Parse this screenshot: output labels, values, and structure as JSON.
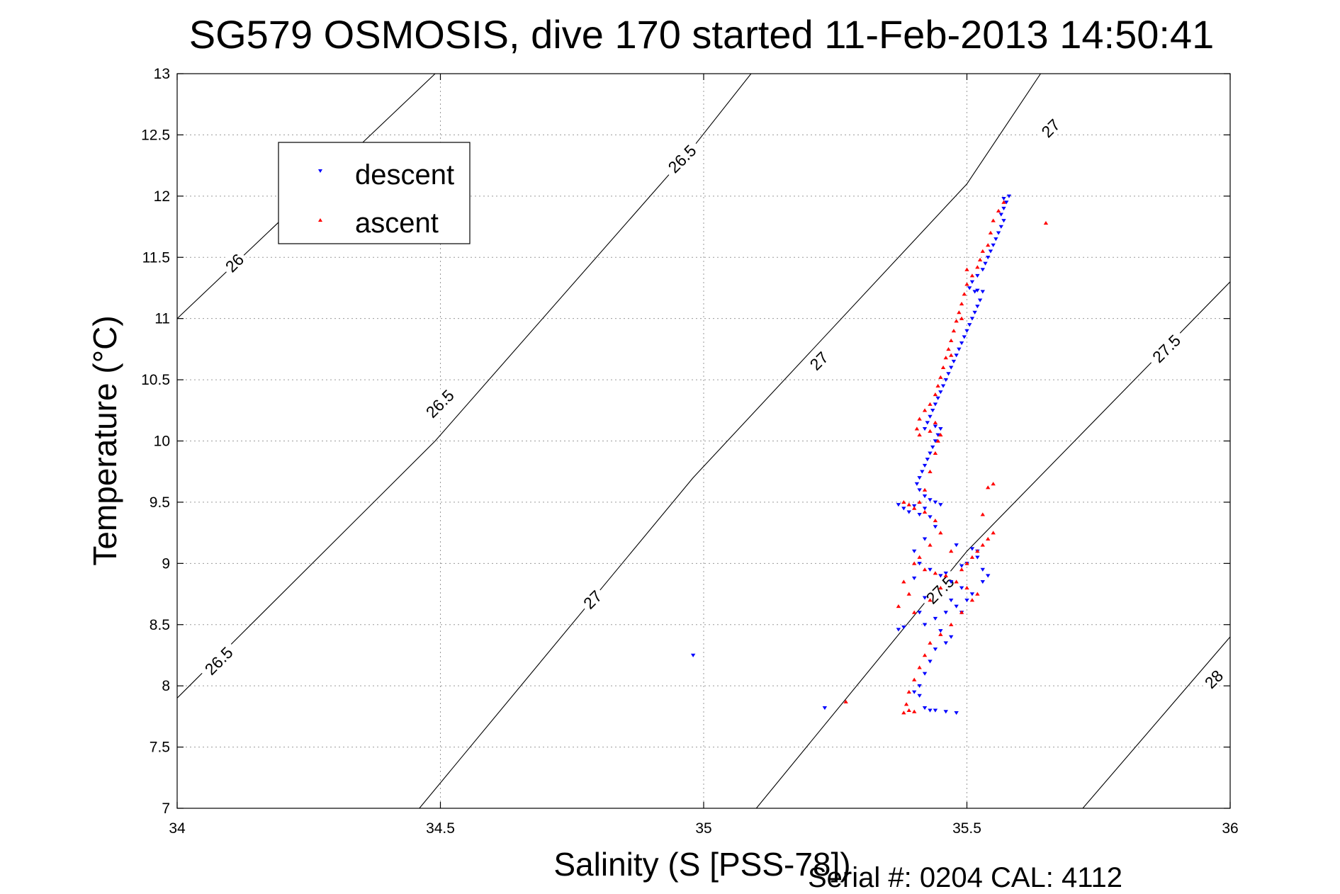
{
  "chart_data": {
    "type": "scatter",
    "title": "SG579 OSMOSIS, dive 170 started 11-Feb-2013 14:50:41",
    "xlabel": "Salinity (S [PSS-78])",
    "ylabel": "Temperature (°C)",
    "footer": "Serial #: 0204  CAL: 4112",
    "xlim": [
      34,
      36
    ],
    "ylim": [
      7,
      13
    ],
    "xticks": [
      "34",
      "34.5",
      "35",
      "35.5",
      "36"
    ],
    "yticks": [
      "7",
      "7.5",
      "8",
      "8.5",
      "9",
      "9.5",
      "10",
      "10.5",
      "11",
      "11.5",
      "12",
      "12.5",
      "13"
    ],
    "grid": true,
    "legend_position": "top-left",
    "colors": {
      "descent": "#0000ff",
      "ascent": "#ff0000"
    },
    "isopycnals": [
      {
        "sigma": "26",
        "points": [
          [
            34.0,
            11.0
          ],
          [
            34.49,
            13.0
          ]
        ]
      },
      {
        "sigma": "26.5",
        "points": [
          [
            34.0,
            7.9
          ],
          [
            34.49,
            10.0
          ],
          [
            34.98,
            12.4
          ],
          [
            35.09,
            13.0
          ]
        ]
      },
      {
        "sigma": "27",
        "points": [
          [
            34.46,
            7.0
          ],
          [
            34.98,
            9.7
          ],
          [
            35.5,
            12.1
          ],
          [
            35.64,
            13.0
          ]
        ]
      },
      {
        "sigma": "27.5",
        "points": [
          [
            35.1,
            7.0
          ],
          [
            35.5,
            9.1
          ],
          [
            36.0,
            11.3
          ]
        ]
      },
      {
        "sigma": "28",
        "points": [
          [
            35.72,
            7.0
          ],
          [
            36.0,
            8.4
          ]
        ]
      }
    ],
    "contour_labels": [
      {
        "text": "26",
        "x": 34.11,
        "y": 11.45,
        "angle": -45
      },
      {
        "text": "26.5",
        "x": 34.08,
        "y": 8.2,
        "angle": -45
      },
      {
        "text": "26.5",
        "x": 34.5,
        "y": 10.3,
        "angle": -45
      },
      {
        "text": "26.5",
        "x": 34.96,
        "y": 12.3,
        "angle": -45
      },
      {
        "text": "27",
        "x": 34.79,
        "y": 8.7,
        "angle": -45
      },
      {
        "text": "27",
        "x": 35.22,
        "y": 10.65,
        "angle": -45
      },
      {
        "text": "27",
        "x": 35.66,
        "y": 12.55,
        "angle": -45
      },
      {
        "text": "27.5",
        "x": 35.45,
        "y": 8.78,
        "angle": -45
      },
      {
        "text": "27.5",
        "x": 35.88,
        "y": 10.75,
        "angle": -45
      },
      {
        "text": "28",
        "x": 35.97,
        "y": 8.05,
        "angle": -45
      }
    ],
    "series": [
      {
        "name": "descent",
        "marker": "triangle-down",
        "points": [
          [
            35.58,
            12.0
          ],
          [
            35.57,
            11.98
          ],
          [
            35.575,
            11.95
          ],
          [
            35.57,
            11.9
          ],
          [
            35.565,
            11.85
          ],
          [
            35.57,
            11.8
          ],
          [
            35.565,
            11.75
          ],
          [
            35.56,
            11.7
          ],
          [
            35.555,
            11.65
          ],
          [
            35.55,
            11.6
          ],
          [
            35.545,
            11.55
          ],
          [
            35.54,
            11.5
          ],
          [
            35.535,
            11.45
          ],
          [
            35.53,
            11.4
          ],
          [
            35.52,
            11.35
          ],
          [
            35.51,
            11.3
          ],
          [
            35.505,
            11.25
          ],
          [
            35.515,
            11.22
          ],
          [
            35.52,
            11.23
          ],
          [
            35.53,
            11.22
          ],
          [
            35.525,
            11.15
          ],
          [
            35.52,
            11.1
          ],
          [
            35.515,
            11.05
          ],
          [
            35.51,
            11.0
          ],
          [
            35.505,
            10.95
          ],
          [
            35.5,
            10.9
          ],
          [
            35.495,
            10.85
          ],
          [
            35.49,
            10.8
          ],
          [
            35.485,
            10.75
          ],
          [
            35.48,
            10.7
          ],
          [
            35.475,
            10.65
          ],
          [
            35.47,
            10.6
          ],
          [
            35.465,
            10.55
          ],
          [
            35.46,
            10.5
          ],
          [
            35.455,
            10.45
          ],
          [
            35.45,
            10.4
          ],
          [
            35.445,
            10.35
          ],
          [
            35.44,
            10.3
          ],
          [
            35.435,
            10.25
          ],
          [
            35.43,
            10.2
          ],
          [
            35.425,
            10.15
          ],
          [
            35.42,
            10.1
          ],
          [
            35.44,
            10.12
          ],
          [
            35.45,
            10.1
          ],
          [
            35.445,
            10.05
          ],
          [
            35.44,
            10.0
          ],
          [
            35.435,
            9.95
          ],
          [
            35.43,
            9.9
          ],
          [
            35.425,
            9.85
          ],
          [
            35.42,
            9.8
          ],
          [
            35.415,
            9.75
          ],
          [
            35.41,
            9.7
          ],
          [
            35.405,
            9.65
          ],
          [
            35.41,
            9.6
          ],
          [
            35.42,
            9.55
          ],
          [
            35.43,
            9.52
          ],
          [
            35.44,
            9.5
          ],
          [
            35.45,
            9.48
          ],
          [
            35.42,
            9.45
          ],
          [
            35.4,
            9.47
          ],
          [
            35.38,
            9.45
          ],
          [
            35.37,
            9.48
          ],
          [
            35.39,
            9.42
          ],
          [
            35.41,
            9.4
          ],
          [
            35.43,
            9.38
          ],
          [
            35.44,
            9.3
          ],
          [
            35.42,
            9.2
          ],
          [
            35.4,
            9.1
          ],
          [
            35.41,
            9.0
          ],
          [
            35.43,
            8.95
          ],
          [
            35.45,
            8.9
          ],
          [
            35.47,
            8.85
          ],
          [
            35.49,
            8.8
          ],
          [
            35.51,
            8.75
          ],
          [
            35.5,
            8.7
          ],
          [
            35.48,
            8.65
          ],
          [
            35.46,
            8.6
          ],
          [
            35.44,
            8.55
          ],
          [
            35.42,
            8.5
          ],
          [
            35.38,
            8.48
          ],
          [
            35.37,
            8.46
          ],
          [
            35.45,
            8.45
          ],
          [
            35.47,
            8.4
          ],
          [
            35.46,
            8.35
          ],
          [
            35.44,
            8.3
          ],
          [
            35.43,
            8.2
          ],
          [
            35.42,
            8.1
          ],
          [
            35.41,
            8.0
          ],
          [
            35.4,
            7.95
          ],
          [
            35.41,
            7.92
          ],
          [
            35.42,
            7.82
          ],
          [
            35.44,
            7.8
          ],
          [
            35.46,
            7.79
          ],
          [
            35.48,
            7.78
          ],
          [
            35.43,
            7.8
          ],
          [
            35.52,
            9.1
          ],
          [
            35.5,
            9.0
          ],
          [
            35.53,
            8.95
          ],
          [
            35.54,
            8.9
          ],
          [
            35.53,
            8.85
          ],
          [
            35.52,
            9.05
          ],
          [
            35.48,
            9.15
          ],
          [
            35.46,
            8.92
          ],
          [
            35.49,
            8.98
          ],
          [
            35.51,
            9.12
          ],
          [
            35.4,
            8.88
          ],
          [
            35.42,
            8.72
          ],
          [
            35.41,
            8.6
          ],
          [
            35.47,
            8.7
          ],
          [
            35.49,
            8.6
          ],
          [
            34.98,
            8.25
          ],
          [
            35.23,
            7.82
          ]
        ]
      },
      {
        "name": "ascent",
        "marker": "triangle-up",
        "points": [
          [
            35.57,
            11.95
          ],
          [
            35.56,
            11.88
          ],
          [
            35.55,
            11.8
          ],
          [
            35.545,
            11.7
          ],
          [
            35.54,
            11.6
          ],
          [
            35.53,
            11.55
          ],
          [
            35.525,
            11.48
          ],
          [
            35.52,
            11.42
          ],
          [
            35.51,
            11.35
          ],
          [
            35.5,
            11.28
          ],
          [
            35.495,
            11.2
          ],
          [
            35.49,
            11.12
          ],
          [
            35.485,
            11.05
          ],
          [
            35.48,
            10.98
          ],
          [
            35.475,
            10.9
          ],
          [
            35.47,
            10.82
          ],
          [
            35.465,
            10.75
          ],
          [
            35.46,
            10.68
          ],
          [
            35.455,
            10.6
          ],
          [
            35.45,
            10.52
          ],
          [
            35.445,
            10.45
          ],
          [
            35.44,
            10.38
          ],
          [
            35.43,
            10.3
          ],
          [
            35.42,
            10.25
          ],
          [
            35.41,
            10.18
          ],
          [
            35.405,
            10.1
          ],
          [
            35.41,
            10.05
          ],
          [
            35.43,
            10.08
          ],
          [
            35.45,
            10.05
          ],
          [
            35.445,
            10.0
          ],
          [
            35.44,
            9.9
          ],
          [
            35.43,
            9.75
          ],
          [
            35.42,
            9.6
          ],
          [
            35.41,
            9.5
          ],
          [
            35.4,
            9.45
          ],
          [
            35.39,
            9.48
          ],
          [
            35.38,
            9.5
          ],
          [
            35.42,
            9.42
          ],
          [
            35.44,
            9.35
          ],
          [
            35.45,
            9.25
          ],
          [
            35.43,
            9.15
          ],
          [
            35.41,
            9.05
          ],
          [
            35.4,
            9.0
          ],
          [
            35.42,
            8.95
          ],
          [
            35.44,
            8.92
          ],
          [
            35.46,
            8.9
          ],
          [
            35.48,
            8.85
          ],
          [
            35.5,
            8.8
          ],
          [
            35.52,
            8.75
          ],
          [
            35.51,
            8.7
          ],
          [
            35.49,
            8.6
          ],
          [
            35.47,
            8.5
          ],
          [
            35.45,
            8.42
          ],
          [
            35.43,
            8.35
          ],
          [
            35.42,
            8.25
          ],
          [
            35.41,
            8.15
          ],
          [
            35.4,
            8.05
          ],
          [
            35.39,
            7.95
          ],
          [
            35.385,
            7.85
          ],
          [
            35.39,
            7.8
          ],
          [
            35.38,
            7.78
          ],
          [
            35.4,
            7.79
          ],
          [
            35.55,
            9.25
          ],
          [
            35.54,
            9.2
          ],
          [
            35.53,
            9.15
          ],
          [
            35.52,
            9.1
          ],
          [
            35.51,
            9.05
          ],
          [
            35.55,
            9.65
          ],
          [
            35.54,
            9.62
          ],
          [
            35.53,
            9.4
          ],
          [
            35.5,
            9.0
          ],
          [
            35.47,
            9.1
          ],
          [
            35.49,
            8.95
          ],
          [
            35.38,
            8.85
          ],
          [
            35.39,
            8.75
          ],
          [
            35.37,
            8.65
          ],
          [
            35.4,
            8.6
          ],
          [
            35.43,
            8.7
          ],
          [
            35.45,
            8.8
          ],
          [
            35.5,
            11.4
          ],
          [
            35.49,
            11.0
          ],
          [
            35.47,
            10.7
          ],
          [
            35.44,
            10.15
          ],
          [
            35.65,
            11.78
          ],
          [
            35.27,
            7.87
          ]
        ]
      }
    ]
  }
}
